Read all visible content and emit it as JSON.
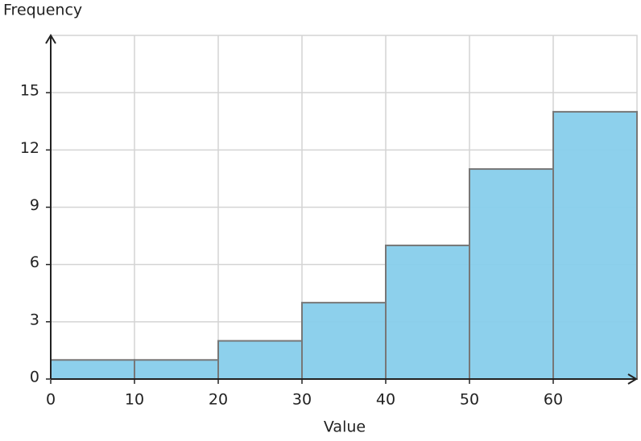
{
  "chart_data": {
    "type": "histogram",
    "x_label": "Value",
    "y_label": "Frequency",
    "bins": [
      0,
      10,
      20,
      30,
      40,
      50,
      60,
      70
    ],
    "counts": [
      1,
      1,
      2,
      4,
      7,
      11,
      14
    ],
    "color": "#87ceeb",
    "xlim": [
      0,
      70
    ],
    "xticks": [
      0,
      10,
      20,
      30,
      40,
      50,
      60
    ],
    "ylim": [
      0,
      18
    ],
    "yticks": [
      0,
      3,
      6,
      9,
      12,
      15
    ],
    "grid": true
  }
}
